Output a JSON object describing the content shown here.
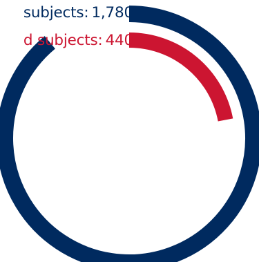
{
  "chart_data": {
    "type": "radial-bar",
    "max": 2000,
    "series": [
      {
        "name": "subjects:",
        "value": 1780,
        "value_label": "1,780",
        "color": "#002a5f"
      },
      {
        "name": "d subjects:",
        "value": 440,
        "value_label": "440",
        "color": "#cc1531"
      }
    ]
  }
}
